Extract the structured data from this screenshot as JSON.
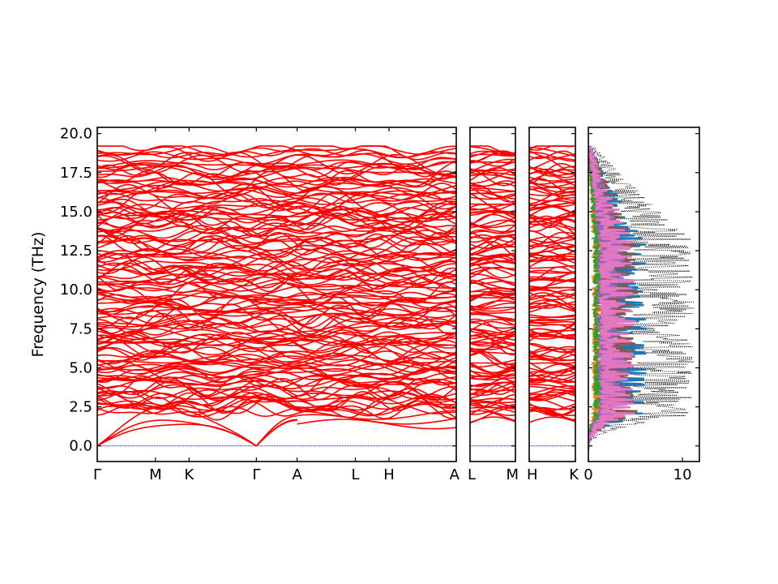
{
  "chart_data": [
    {
      "type": "line",
      "ylabel": "Frequency (THz)",
      "ylim": [
        -1.0,
        20.4
      ],
      "yticks": [
        "0.0",
        "2.5",
        "5.0",
        "7.5",
        "10.0",
        "12.5",
        "15.0",
        "17.5",
        "20.0"
      ],
      "segments": [
        {
          "name": "Γ-M-K-Γ-A-L-H-A",
          "kpoints": [
            "Γ",
            "M",
            "K",
            "Γ",
            "A",
            "L",
            "H",
            "A"
          ],
          "kpos": [
            0,
            1,
            1.577,
            2.732,
            3.432,
            4.432,
            5.009,
            6.164
          ]
        },
        {
          "name": "L-M",
          "kpoints": [
            "L",
            "M"
          ],
          "kpos": [
            0,
            0.7
          ]
        },
        {
          "name": "H-K",
          "kpoints": [
            "H",
            "K"
          ],
          "kpos": [
            0,
            0.7
          ]
        }
      ],
      "band_color": "#ff0000",
      "zero_line_color": "#0000ff",
      "band_count_approx": 140,
      "max_frequency": 19.2,
      "acoustic_top": [
        2.4,
        1.8,
        1.6
      ]
    },
    {
      "type": "line",
      "xlabel": "",
      "xticks": [
        "0",
        "10"
      ],
      "xlim": [
        0,
        11.8
      ],
      "ylim": [
        -1.0,
        20.4
      ],
      "series": [
        {
          "color": "#000000",
          "style": "dotted",
          "max": 11.3
        },
        {
          "color": "#1f77b4",
          "max": 6.2
        },
        {
          "color": "#ff7f0e",
          "max": 2.1
        },
        {
          "color": "#2ca02c",
          "max": 2.4
        },
        {
          "color": "#8c564b",
          "max": 5.3
        },
        {
          "color": "#9467bd",
          "max": 4.2
        },
        {
          "color": "#e377c2",
          "max": 5.0
        }
      ]
    }
  ]
}
